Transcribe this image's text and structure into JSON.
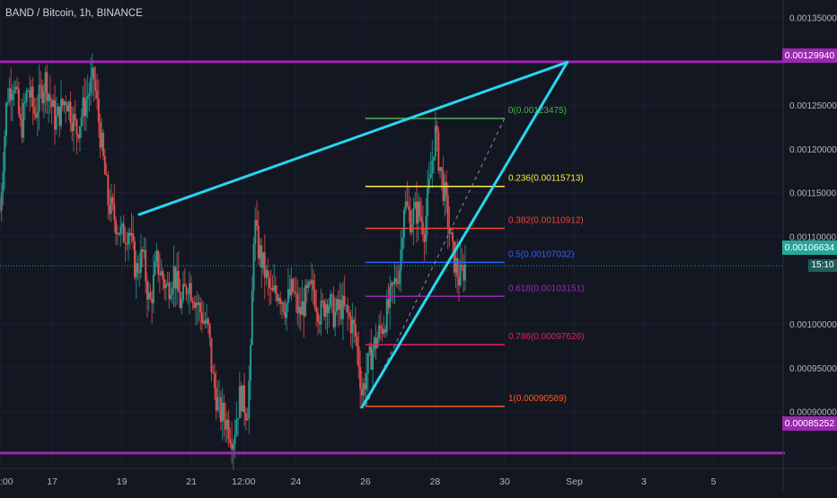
{
  "header": {
    "title": "BAND / Bitcoin, 1h, BINANCE"
  },
  "colors": {
    "background": "#131722",
    "grid": "#1c2030",
    "axis_text": "#b2b5be",
    "candle_up": "#26a69a",
    "candle_down": "#ef5350",
    "level_line": "#9c27b0",
    "trend_line": "#26d7f0",
    "current_price": "#26a69a"
  },
  "chart_data": {
    "type": "line",
    "y_axis": {
      "ticks": [
        "0.00135000",
        "0.00125000",
        "0.00120000",
        "0.00115000",
        "0.00110000",
        "0.00100000",
        "0.00095000",
        "0.00090000"
      ],
      "tick_values": [
        0.00135,
        0.00125,
        0.0012,
        0.00115,
        0.0011,
        0.001,
        0.00095,
        0.0009
      ],
      "range": [
        0.000835,
        0.00137
      ]
    },
    "x_axis": {
      "ticks": [
        ":00",
        "17",
        "19",
        "21",
        "12:00",
        "24",
        "26",
        "28",
        "30",
        "Sep",
        "3",
        "5"
      ],
      "range_days": [
        15.0,
        37.5
      ],
      "tick_positions": [
        15.0,
        16.5,
        18.5,
        20.5,
        22.0,
        23.5,
        25.5,
        27.5,
        29.5,
        31.5,
        33.5,
        35.5
      ]
    },
    "price_labels": {
      "resistance": "0.00129940",
      "support": "0.00085252",
      "current": "0.00106634",
      "timer": "15:10"
    },
    "horizontal_levels": [
      0.0012994,
      0.00085252
    ],
    "current_price": 0.00106634,
    "fibonacci": [
      {
        "label": "0(0.00123475)",
        "value": 0.00123475,
        "color": "#4caf50"
      },
      {
        "label": "0.236(0.00115713)",
        "value": 0.00115713,
        "color": "#ffeb3b"
      },
      {
        "label": "0.382(0.00110912)",
        "value": 0.00110912,
        "color": "#f44336"
      },
      {
        "label": "0.5(0.00107032)",
        "value": 0.00107032,
        "color": "#2962ff"
      },
      {
        "label": "0.618(0.00103151)",
        "value": 0.00103151,
        "color": "#9c27b0"
      },
      {
        "label": "0.786(0.00097626)",
        "value": 0.00097626,
        "color": "#e91e63"
      },
      {
        "label": "1(0.00090589)",
        "value": 0.00090589,
        "color": "#ff5722"
      }
    ],
    "fib_range_days": [
      25.5,
      29.5
    ],
    "trend_lines": [
      {
        "from": [
          19.0,
          0.001125
        ],
        "to": [
          31.3,
          0.001299
        ]
      },
      {
        "from": [
          25.4,
          0.000905
        ],
        "to": [
          31.3,
          0.001299
        ]
      }
    ],
    "dashed_line": {
      "from": [
        25.5,
        0.000906
      ],
      "to": [
        29.5,
        0.001235
      ]
    },
    "price_path": [
      [
        15.0,
        0.00113
      ],
      [
        15.2,
        0.00126
      ],
      [
        15.4,
        0.00128
      ],
      [
        15.6,
        0.00122
      ],
      [
        15.8,
        0.00127
      ],
      [
        16.0,
        0.00124
      ],
      [
        16.3,
        0.00128
      ],
      [
        16.6,
        0.00123
      ],
      [
        16.9,
        0.00126
      ],
      [
        17.2,
        0.00122
      ],
      [
        17.5,
        0.00126
      ],
      [
        17.7,
        0.00128
      ],
      [
        17.9,
        0.00121
      ],
      [
        18.1,
        0.00114
      ],
      [
        18.3,
        0.00112
      ],
      [
        18.5,
        0.0011
      ],
      [
        18.7,
        0.00111
      ],
      [
        18.9,
        0.00106
      ],
      [
        19.1,
        0.00108
      ],
      [
        19.3,
        0.00102
      ],
      [
        19.5,
        0.00107
      ],
      [
        19.8,
        0.00104
      ],
      [
        20.0,
        0.00106
      ],
      [
        20.2,
        0.00102
      ],
      [
        20.4,
        0.00105
      ],
      [
        20.6,
        0.00103
      ],
      [
        20.8,
        0.00101
      ],
      [
        21.0,
        0.00099
      ],
      [
        21.1,
        0.00094
      ],
      [
        21.3,
        0.0009
      ],
      [
        21.5,
        0.00089
      ],
      [
        21.7,
        0.00087
      ],
      [
        21.9,
        0.00092
      ],
      [
        22.1,
        0.0009
      ],
      [
        22.2,
        0.00096
      ],
      [
        22.3,
        0.00112
      ],
      [
        22.4,
        0.00109
      ],
      [
        22.6,
        0.00106
      ],
      [
        22.8,
        0.00103
      ],
      [
        23.0,
        0.00104
      ],
      [
        23.2,
        0.00102
      ],
      [
        23.4,
        0.00104
      ],
      [
        23.6,
        0.00101
      ],
      [
        23.8,
        0.00103
      ],
      [
        24.0,
        0.00104
      ],
      [
        24.2,
        0.00101
      ],
      [
        24.4,
        0.00103
      ],
      [
        24.6,
        0.00101
      ],
      [
        24.8,
        0.00102
      ],
      [
        25.0,
        0.00101
      ],
      [
        25.2,
        0.00099
      ],
      [
        25.3,
        0.00096
      ],
      [
        25.4,
        0.00092
      ],
      [
        25.5,
        0.00094
      ],
      [
        25.7,
        0.00097
      ],
      [
        25.9,
        0.00099
      ],
      [
        26.1,
        0.00101
      ],
      [
        26.3,
        0.00104
      ],
      [
        26.5,
        0.00107
      ],
      [
        26.6,
        0.00114
      ],
      [
        26.8,
        0.00112
      ],
      [
        27.0,
        0.00113
      ],
      [
        27.2,
        0.00111
      ],
      [
        27.4,
        0.00118
      ],
      [
        27.5,
        0.00122
      ],
      [
        27.6,
        0.00119
      ],
      [
        27.8,
        0.00114
      ],
      [
        27.9,
        0.00111
      ],
      [
        28.0,
        0.00108
      ],
      [
        28.2,
        0.00105
      ],
      [
        28.4,
        0.00107
      ]
    ]
  }
}
